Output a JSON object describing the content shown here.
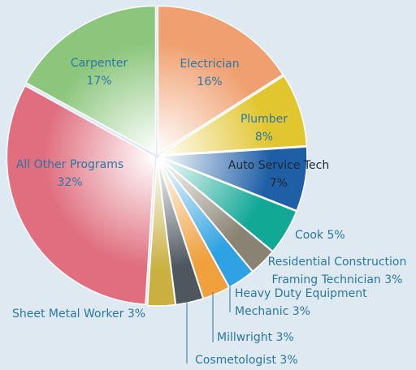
{
  "chart_data": {
    "type": "pie",
    "categories": [
      "Electrician",
      "Plumber",
      "Auto Service Tech",
      "Cook",
      "Residential Construction Framing Technician",
      "Heavy Duty Equipment Mechanic",
      "Millwright",
      "Cosmetologist",
      "Sheet Metal Worker",
      "All Other Programs",
      "Carpenter"
    ],
    "values": [
      16,
      8,
      7,
      5,
      3,
      3,
      3,
      3,
      3,
      32,
      17
    ],
    "value_labels": [
      "16%",
      "8%",
      "7%",
      "5%",
      "3%",
      "3%",
      "3%",
      "3%",
      "3%",
      "32%",
      "17%"
    ],
    "colors": [
      "#f0a070",
      "#e2c630",
      "#1f5fa6",
      "#12a896",
      "#8a8272",
      "#2ea2e2",
      "#f0a03c",
      "#4e565e",
      "#c9b040",
      "#e06e7e",
      "#8cc67c"
    ]
  }
}
